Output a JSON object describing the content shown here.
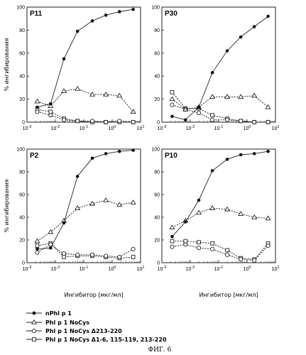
{
  "chart_data": [
    {
      "panel": "P11",
      "type": "line",
      "xscale": "log",
      "xlim": [
        0.001,
        10
      ],
      "ylim": [
        0,
        100
      ],
      "ylabel": "% ингибирования",
      "x_ticks": [
        "10-3",
        "10-2",
        "10-1",
        "100",
        "101"
      ],
      "y_ticks": [
        "0",
        "20",
        "40",
        "60",
        "80",
        "100"
      ],
      "series": [
        {
          "name": "nPhl p 1",
          "marker": "filled-circle",
          "x": [
            0.0023,
            0.0068,
            0.02,
            0.06,
            0.2,
            0.6,
            1.8,
            5.5
          ],
          "y": [
            13,
            16,
            55,
            79,
            88,
            93,
            96,
            98
          ]
        },
        {
          "name": "Phl p 1 NoCys",
          "marker": "triangle",
          "x": [
            0.0023,
            0.0068,
            0.02,
            0.06,
            0.2,
            0.6,
            1.8,
            5.5
          ],
          "y": [
            18,
            14,
            27,
            29,
            24,
            24,
            23,
            9
          ]
        },
        {
          "name": "Phl p 1 NoCys Δ213-220",
          "marker": "circle",
          "x": [
            0.0023,
            0.0068,
            0.02,
            0.06,
            0.2,
            0.6,
            1.8,
            5.5
          ],
          "y": [
            9,
            6,
            2,
            1,
            1,
            0,
            1,
            0
          ]
        },
        {
          "name": "Phl p 1 NoCys Δ1-6, 115-119, 213-220",
          "marker": "square",
          "x": [
            0.0023,
            0.0068,
            0.02,
            0.06,
            0.2,
            0.6,
            1.8,
            5.5
          ],
          "y": [
            11,
            9,
            3,
            1,
            0,
            0,
            0,
            0
          ]
        }
      ]
    },
    {
      "panel": "P30",
      "type": "line",
      "xscale": "log",
      "xlim": [
        0.001,
        10
      ],
      "ylim": [
        0,
        100
      ],
      "ylabel": "",
      "x_ticks": [
        "10-3",
        "10-2",
        "10-1",
        "100",
        "101"
      ],
      "y_ticks": [
        "0",
        "20",
        "40",
        "60",
        "80",
        "100"
      ],
      "series": [
        {
          "name": "nPhl p 1",
          "marker": "filled-circle",
          "x": [
            0.0023,
            0.0068,
            0.02,
            0.06,
            0.2,
            0.6,
            1.8,
            5.5
          ],
          "y": [
            5,
            2,
            13,
            43,
            62,
            74,
            83,
            92
          ]
        },
        {
          "name": "Phl p 1 NoCys",
          "marker": "triangle",
          "x": [
            0.0023,
            0.0068,
            0.02,
            0.06,
            0.2,
            0.6,
            1.8,
            5.5
          ],
          "y": [
            20,
            11,
            13,
            22,
            22,
            22,
            23,
            13
          ]
        },
        {
          "name": "Phl p 1 NoCys Δ213-220",
          "marker": "circle",
          "x": [
            0.0023,
            0.0068,
            0.02,
            0.06,
            0.2,
            0.6,
            1.8,
            5.5
          ],
          "y": [
            15,
            11,
            8,
            2,
            2,
            1,
            0,
            0
          ]
        },
        {
          "name": "Phl p 1 NoCys Δ1-6, 115-119, 213-220",
          "marker": "square",
          "x": [
            0.0023,
            0.0068,
            0.02,
            0.06,
            0.2,
            0.6,
            1.8,
            5.5
          ],
          "y": [
            26,
            12,
            12,
            6,
            3,
            1,
            0,
            0
          ]
        }
      ]
    },
    {
      "panel": "P2",
      "type": "line",
      "xscale": "log",
      "xlim": [
        0.001,
        10
      ],
      "ylim": [
        0,
        100
      ],
      "ylabel": "% ингибирования",
      "x_ticks": [
        "10-3",
        "10-2",
        "10-1",
        "100",
        "101"
      ],
      "y_ticks": [
        "0",
        "20",
        "40",
        "60",
        "80",
        "100"
      ],
      "series": [
        {
          "name": "nPhl p 1",
          "marker": "filled-circle",
          "x": [
            0.0023,
            0.0068,
            0.02,
            0.06,
            0.2,
            0.6,
            1.8,
            5.5
          ],
          "y": [
            12,
            13,
            35,
            76,
            92,
            96,
            98,
            99
          ]
        },
        {
          "name": "Phl p 1 NoCys",
          "marker": "triangle",
          "x": [
            0.0023,
            0.0068,
            0.02,
            0.06,
            0.2,
            0.6,
            1.8,
            5.5
          ],
          "y": [
            19,
            27,
            37,
            48,
            52,
            55,
            51,
            53
          ]
        },
        {
          "name": "Phl p 1 NoCys Δ213-220",
          "marker": "circle",
          "x": [
            0.0023,
            0.0068,
            0.02,
            0.06,
            0.2,
            0.6,
            1.8,
            5.5
          ],
          "y": [
            9,
            16,
            8,
            7,
            7,
            6,
            5,
            12
          ]
        },
        {
          "name": "Phl p 1 NoCys Δ1-6, 115-119, 213-220",
          "marker": "square",
          "x": [
            0.0023,
            0.0068,
            0.02,
            0.06,
            0.2,
            0.6,
            1.8,
            5.5
          ],
          "y": [
            15,
            17,
            5,
            6,
            6,
            5,
            4,
            5
          ]
        }
      ]
    },
    {
      "panel": "P10",
      "type": "line",
      "xscale": "log",
      "xlim": [
        0.001,
        10
      ],
      "ylim": [
        0,
        100
      ],
      "ylabel": "",
      "x_ticks": [
        "10-3",
        "10-2",
        "10-1",
        "100",
        "101"
      ],
      "y_ticks": [
        "0",
        "20",
        "40",
        "60",
        "80",
        "100"
      ],
      "series": [
        {
          "name": "nPhl p 1",
          "marker": "filled-circle",
          "x": [
            0.0023,
            0.0068,
            0.02,
            0.06,
            0.2,
            0.6,
            1.8,
            5.5
          ],
          "y": [
            23,
            36,
            55,
            81,
            91,
            95,
            96,
            98
          ]
        },
        {
          "name": "Phl p 1 NoCys",
          "marker": "triangle",
          "x": [
            0.0023,
            0.0068,
            0.02,
            0.06,
            0.2,
            0.6,
            1.8,
            5.5
          ],
          "y": [
            31,
            37,
            44,
            48,
            47,
            43,
            40,
            39
          ]
        },
        {
          "name": "Phl p 1 NoCys Δ213-220",
          "marker": "circle",
          "x": [
            0.0023,
            0.0068,
            0.02,
            0.06,
            0.2,
            0.6,
            1.8,
            5.5
          ],
          "y": [
            14,
            16,
            13,
            12,
            7,
            3,
            2,
            15
          ]
        },
        {
          "name": "Phl p 1 NoCys Δ1-6, 115-119, 213-220",
          "marker": "square",
          "x": [
            0.0023,
            0.0068,
            0.02,
            0.06,
            0.2,
            0.6,
            1.8,
            5.5
          ],
          "y": [
            19,
            19,
            18,
            17,
            11,
            4,
            3,
            17
          ]
        }
      ]
    }
  ],
  "xlabel": "Ингибитор [мкг/мл]",
  "legend": [
    {
      "marker": "filled-circle",
      "label": "nPhl p 1"
    },
    {
      "marker": "triangle",
      "label": "Phl p 1 NoCys"
    },
    {
      "marker": "circle",
      "label": "Phl p 1 NoCys Δ213-220"
    },
    {
      "marker": "square",
      "label": "Phl p 1 NoCys Δ1-6, 115-119, 213-220"
    }
  ],
  "caption": "ФИГ. 6"
}
